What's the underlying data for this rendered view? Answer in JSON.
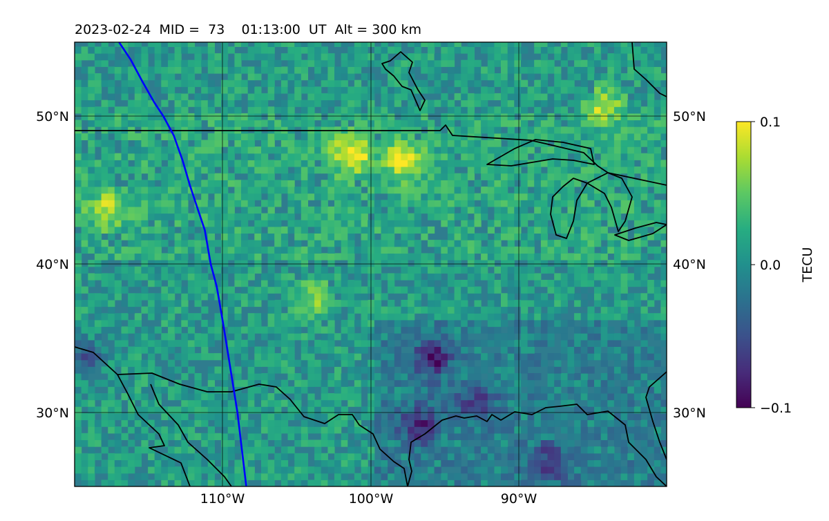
{
  "title": "2023-02-24  MID =  73    01:13:00  UT  Alt = 300 km",
  "map": {
    "lat_range": [
      25,
      55
    ],
    "lon_range": [
      -120,
      -80
    ],
    "lat_ticks": [
      {
        "value": 30,
        "label": "30°N"
      },
      {
        "value": 40,
        "label": "40°N"
      },
      {
        "value": 50,
        "label": "50°N"
      }
    ],
    "lon_ticks": [
      {
        "value": -110,
        "label": "110°W"
      },
      {
        "value": -100,
        "label": "100°W"
      },
      {
        "value": -90,
        "label": "90°W"
      }
    ],
    "grid": true,
    "colormap": "viridis",
    "background_color": "#2f7c8e",
    "track_color": "#0000ff",
    "coastline_color": "#000000"
  },
  "colorbar": {
    "label": "TECU",
    "min": -0.1,
    "max": 0.1,
    "ticks": [
      {
        "value": 0.1,
        "label": "0.1"
      },
      {
        "value": 0.0,
        "label": "0.0"
      },
      {
        "value": -0.1,
        "label": "−0.1"
      }
    ]
  },
  "chart_data": {
    "type": "heatmap",
    "title": "2023-02-24  MID =  73    01:13:00  UT  Alt = 300 km",
    "value_label": "TECU",
    "value_range": [
      -0.1,
      0.1
    ],
    "x_axis": "longitude",
    "y_axis": "latitude",
    "xlim": [
      -120,
      -80
    ],
    "ylim": [
      25,
      55
    ],
    "features": [
      {
        "label": "enhancement",
        "lon": -101.5,
        "lat": 47.2,
        "value": 0.09
      },
      {
        "label": "enhancement",
        "lon": -98.0,
        "lat": 46.8,
        "value": 0.08
      },
      {
        "label": "enhancement",
        "lon": -118.0,
        "lat": 43.5,
        "value": 0.06
      },
      {
        "label": "enhancement",
        "lon": -84.5,
        "lat": 50.5,
        "value": 0.07
      },
      {
        "label": "enhancement",
        "lon": -104.0,
        "lat": 37.5,
        "value": 0.05
      },
      {
        "label": "depletion",
        "lon": -96.0,
        "lat": 33.5,
        "value": -0.08
      },
      {
        "label": "depletion",
        "lon": -97.0,
        "lat": 29.0,
        "value": -0.07
      },
      {
        "label": "depletion",
        "lon": -93.0,
        "lat": 30.5,
        "value": -0.06
      },
      {
        "label": "depletion",
        "lon": -88.0,
        "lat": 26.5,
        "value": -0.06
      },
      {
        "label": "depletion",
        "lon": -119.5,
        "lat": 33.5,
        "value": -0.05
      }
    ],
    "track": {
      "lon": [
        -117,
        -116.2,
        -115.4,
        -114.6,
        -114,
        -113.3,
        -112.7,
        -112.2,
        -111.7,
        -111.2,
        -110.8,
        -110.4,
        -110.1,
        -109.8,
        -109.4,
        -109,
        -108.7,
        -108.4
      ],
      "lat": [
        55,
        53.8,
        52.3,
        50.9,
        50,
        48.7,
        47,
        45.3,
        43.8,
        42.3,
        40,
        38.5,
        36.8,
        35,
        32.5,
        30,
        27.5,
        25
      ]
    }
  }
}
